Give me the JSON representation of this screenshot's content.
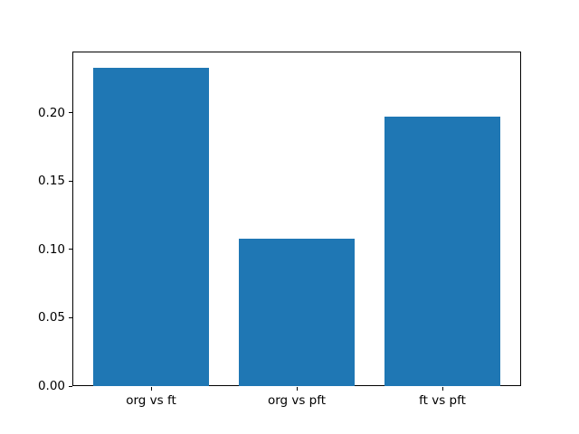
{
  "figure": {
    "background_color": "#ffffff"
  },
  "chart_data": {
    "type": "bar",
    "title": "",
    "xlabel": "",
    "ylabel": "",
    "categories": [
      "org vs ft",
      "org vs pft",
      "ft vs pft"
    ],
    "values": [
      0.233,
      0.108,
      0.197
    ],
    "ytick_values": [
      0.0,
      0.05,
      0.1,
      0.15,
      0.2
    ],
    "ytick_labels": [
      "0.00",
      "0.05",
      "0.10",
      "0.15",
      "0.20"
    ],
    "ylim": [
      0,
      0.2447
    ],
    "xlim": [
      -0.54,
      2.54
    ],
    "bar_width_data_units": 0.8,
    "bar_color": "#1f77b4",
    "axis_color": "#000000",
    "grid": "off",
    "legend": "none"
  }
}
